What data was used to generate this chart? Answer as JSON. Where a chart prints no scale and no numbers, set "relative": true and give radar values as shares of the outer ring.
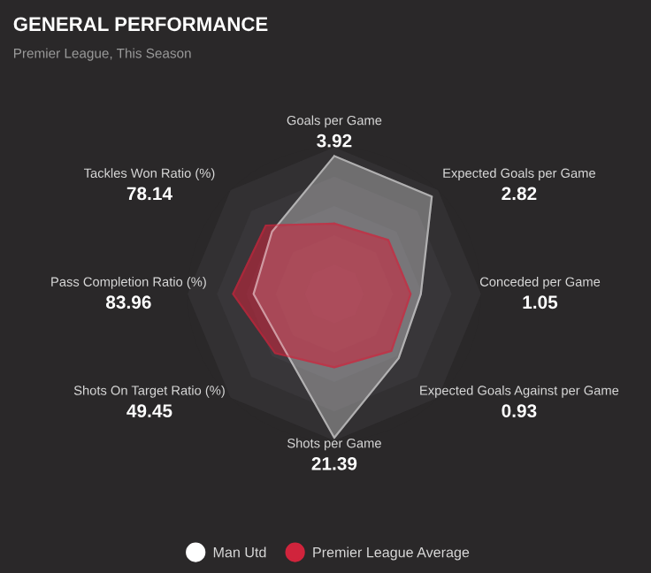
{
  "chart_data": {
    "type": "radar",
    "title": "GENERAL PERFORMANCE",
    "subtitle": "Premier League, This Season",
    "relative": true,
    "grid": true,
    "legend": "bottom",
    "categories": [
      "Goals per Game",
      "Expected Goals per Game",
      "Conceded per Game",
      "Expected Goals Against per Game",
      "Shots per Game",
      "Shots On Target Ratio (%)",
      "Pass Completion Ratio (%)",
      "Tackles Won Ratio (%)"
    ],
    "series": [
      {
        "name": "Man Utd",
        "color": "#ffffff",
        "values": [
          0.94,
          0.94,
          0.59,
          0.62,
          0.98,
          0.5,
          0.55,
          0.6
        ]
      },
      {
        "name": "Premier League Average",
        "color": "#d0243c",
        "values": [
          0.48,
          0.52,
          0.52,
          0.55,
          0.5,
          0.57,
          0.69,
          0.66
        ]
      }
    ],
    "annotations": [
      {
        "text": "3.92",
        "x": "Goals per Game"
      },
      {
        "text": "2.82",
        "x": "Expected Goals per Game"
      },
      {
        "text": "1.05",
        "x": "Conceded per Game"
      },
      {
        "text": "0.93",
        "x": "Expected Goals Against per Game"
      },
      {
        "text": "21.39",
        "x": "Shots per Game"
      },
      {
        "text": "49.45",
        "x": "Shots On Target Ratio (%)"
      },
      {
        "text": "83.96",
        "x": "Pass Completion Ratio (%)"
      },
      {
        "text": "78.14",
        "x": "Tackles Won Ratio (%)"
      }
    ]
  }
}
